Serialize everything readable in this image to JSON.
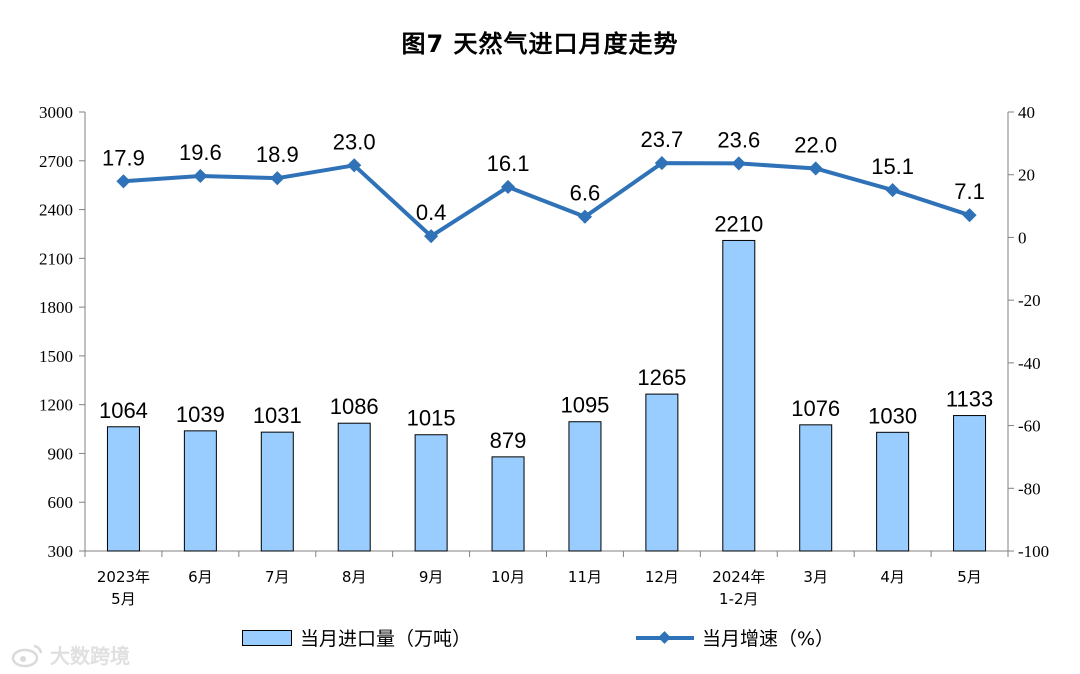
{
  "chart_data": {
    "type": "bar",
    "title": "图7  天然气进口月度走势",
    "categories": [
      [
        "2023年",
        "5月"
      ],
      [
        "6月"
      ],
      [
        "7月"
      ],
      [
        "8月"
      ],
      [
        "9月"
      ],
      [
        "10月"
      ],
      [
        "11月"
      ],
      [
        "12月"
      ],
      [
        "2024年",
        "1-2月"
      ],
      [
        "3月"
      ],
      [
        "4月"
      ],
      [
        "5月"
      ]
    ],
    "series": [
      {
        "name": "当月进口量（万吨）",
        "type": "bar",
        "axis": "left",
        "values": [
          1064,
          1039,
          1031,
          1086,
          1015,
          879,
          1095,
          1265,
          2210,
          1076,
          1030,
          1133
        ],
        "labels": [
          "1064",
          "1039",
          "1031",
          "1086",
          "1015",
          "879",
          "1095",
          "1265",
          "2210",
          "1076",
          "1030",
          "1133"
        ],
        "color": "#99ccff"
      },
      {
        "name": "当月增速（%）",
        "type": "line",
        "axis": "right",
        "values": [
          17.9,
          19.6,
          18.9,
          23.0,
          0.4,
          16.1,
          6.6,
          23.7,
          23.6,
          22.0,
          15.1,
          7.1
        ],
        "labels": [
          "17.9",
          "19.6",
          "18.9",
          "23.0",
          "0.4",
          "16.1",
          "6.6",
          "23.7",
          "23.6",
          "22.0",
          "15.1",
          "7.1"
        ],
        "color": "#2f72b8"
      }
    ],
    "y_left": {
      "min": 300,
      "max": 3000,
      "ticks": [
        300,
        600,
        900,
        1200,
        1500,
        1800,
        2100,
        2400,
        2700,
        3000
      ]
    },
    "y_right": {
      "min": -100,
      "max": 40,
      "ticks": [
        -100,
        -80,
        -60,
        -40,
        -20,
        0,
        20,
        40
      ]
    },
    "grid": false,
    "legend_position": "bottom"
  },
  "watermark": {
    "text": "大数跨境",
    "icon": "weibo-logo-icon"
  }
}
